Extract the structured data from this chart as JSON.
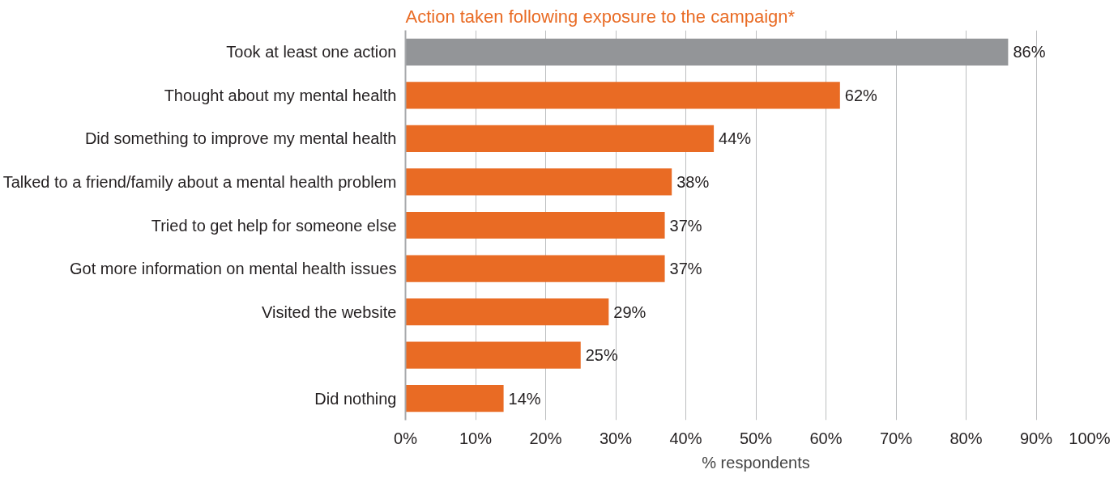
{
  "chart_data": {
    "type": "bar",
    "orientation": "horizontal",
    "title": "Action taken following exposure to the campaign*",
    "xlabel": "% respondents",
    "categories": [
      "Took at least one action",
      "Thought about my mental health",
      "Did something to improve my mental health",
      "Talked to a friend/family about a mental health problem",
      "Tried to get help for someone else",
      "Got more information on mental health issues",
      "Visited the website",
      null,
      "Did nothing"
    ],
    "values": [
      86,
      62,
      44,
      38,
      37,
      37,
      29,
      25,
      14
    ],
    "colors": [
      "#939598",
      "#e96b24",
      "#e96b24",
      "#e96b24",
      "#e96b24",
      "#e96b24",
      "#e96b24",
      "#e96b24",
      "#e96b24"
    ],
    "value_labels": [
      "86%",
      "62%",
      "44%",
      "38%",
      "37%",
      "37%",
      "29%",
      "25%",
      "14%"
    ],
    "xlim": [
      0,
      100
    ],
    "xticks": [
      {
        "value": 0,
        "label": "0%"
      },
      {
        "value": 10,
        "label": "10%"
      },
      {
        "value": 20,
        "label": "20%"
      },
      {
        "value": 30,
        "label": "30%"
      },
      {
        "value": 40,
        "label": "40%"
      },
      {
        "value": 50,
        "label": "50%"
      },
      {
        "value": 60,
        "label": "60%"
      },
      {
        "value": 70,
        "label": "70%"
      },
      {
        "value": 80,
        "label": "80%"
      },
      {
        "value": 90,
        "label": "90%"
      },
      {
        "value": 100,
        "label": "100%"
      }
    ],
    "grid": "x"
  }
}
